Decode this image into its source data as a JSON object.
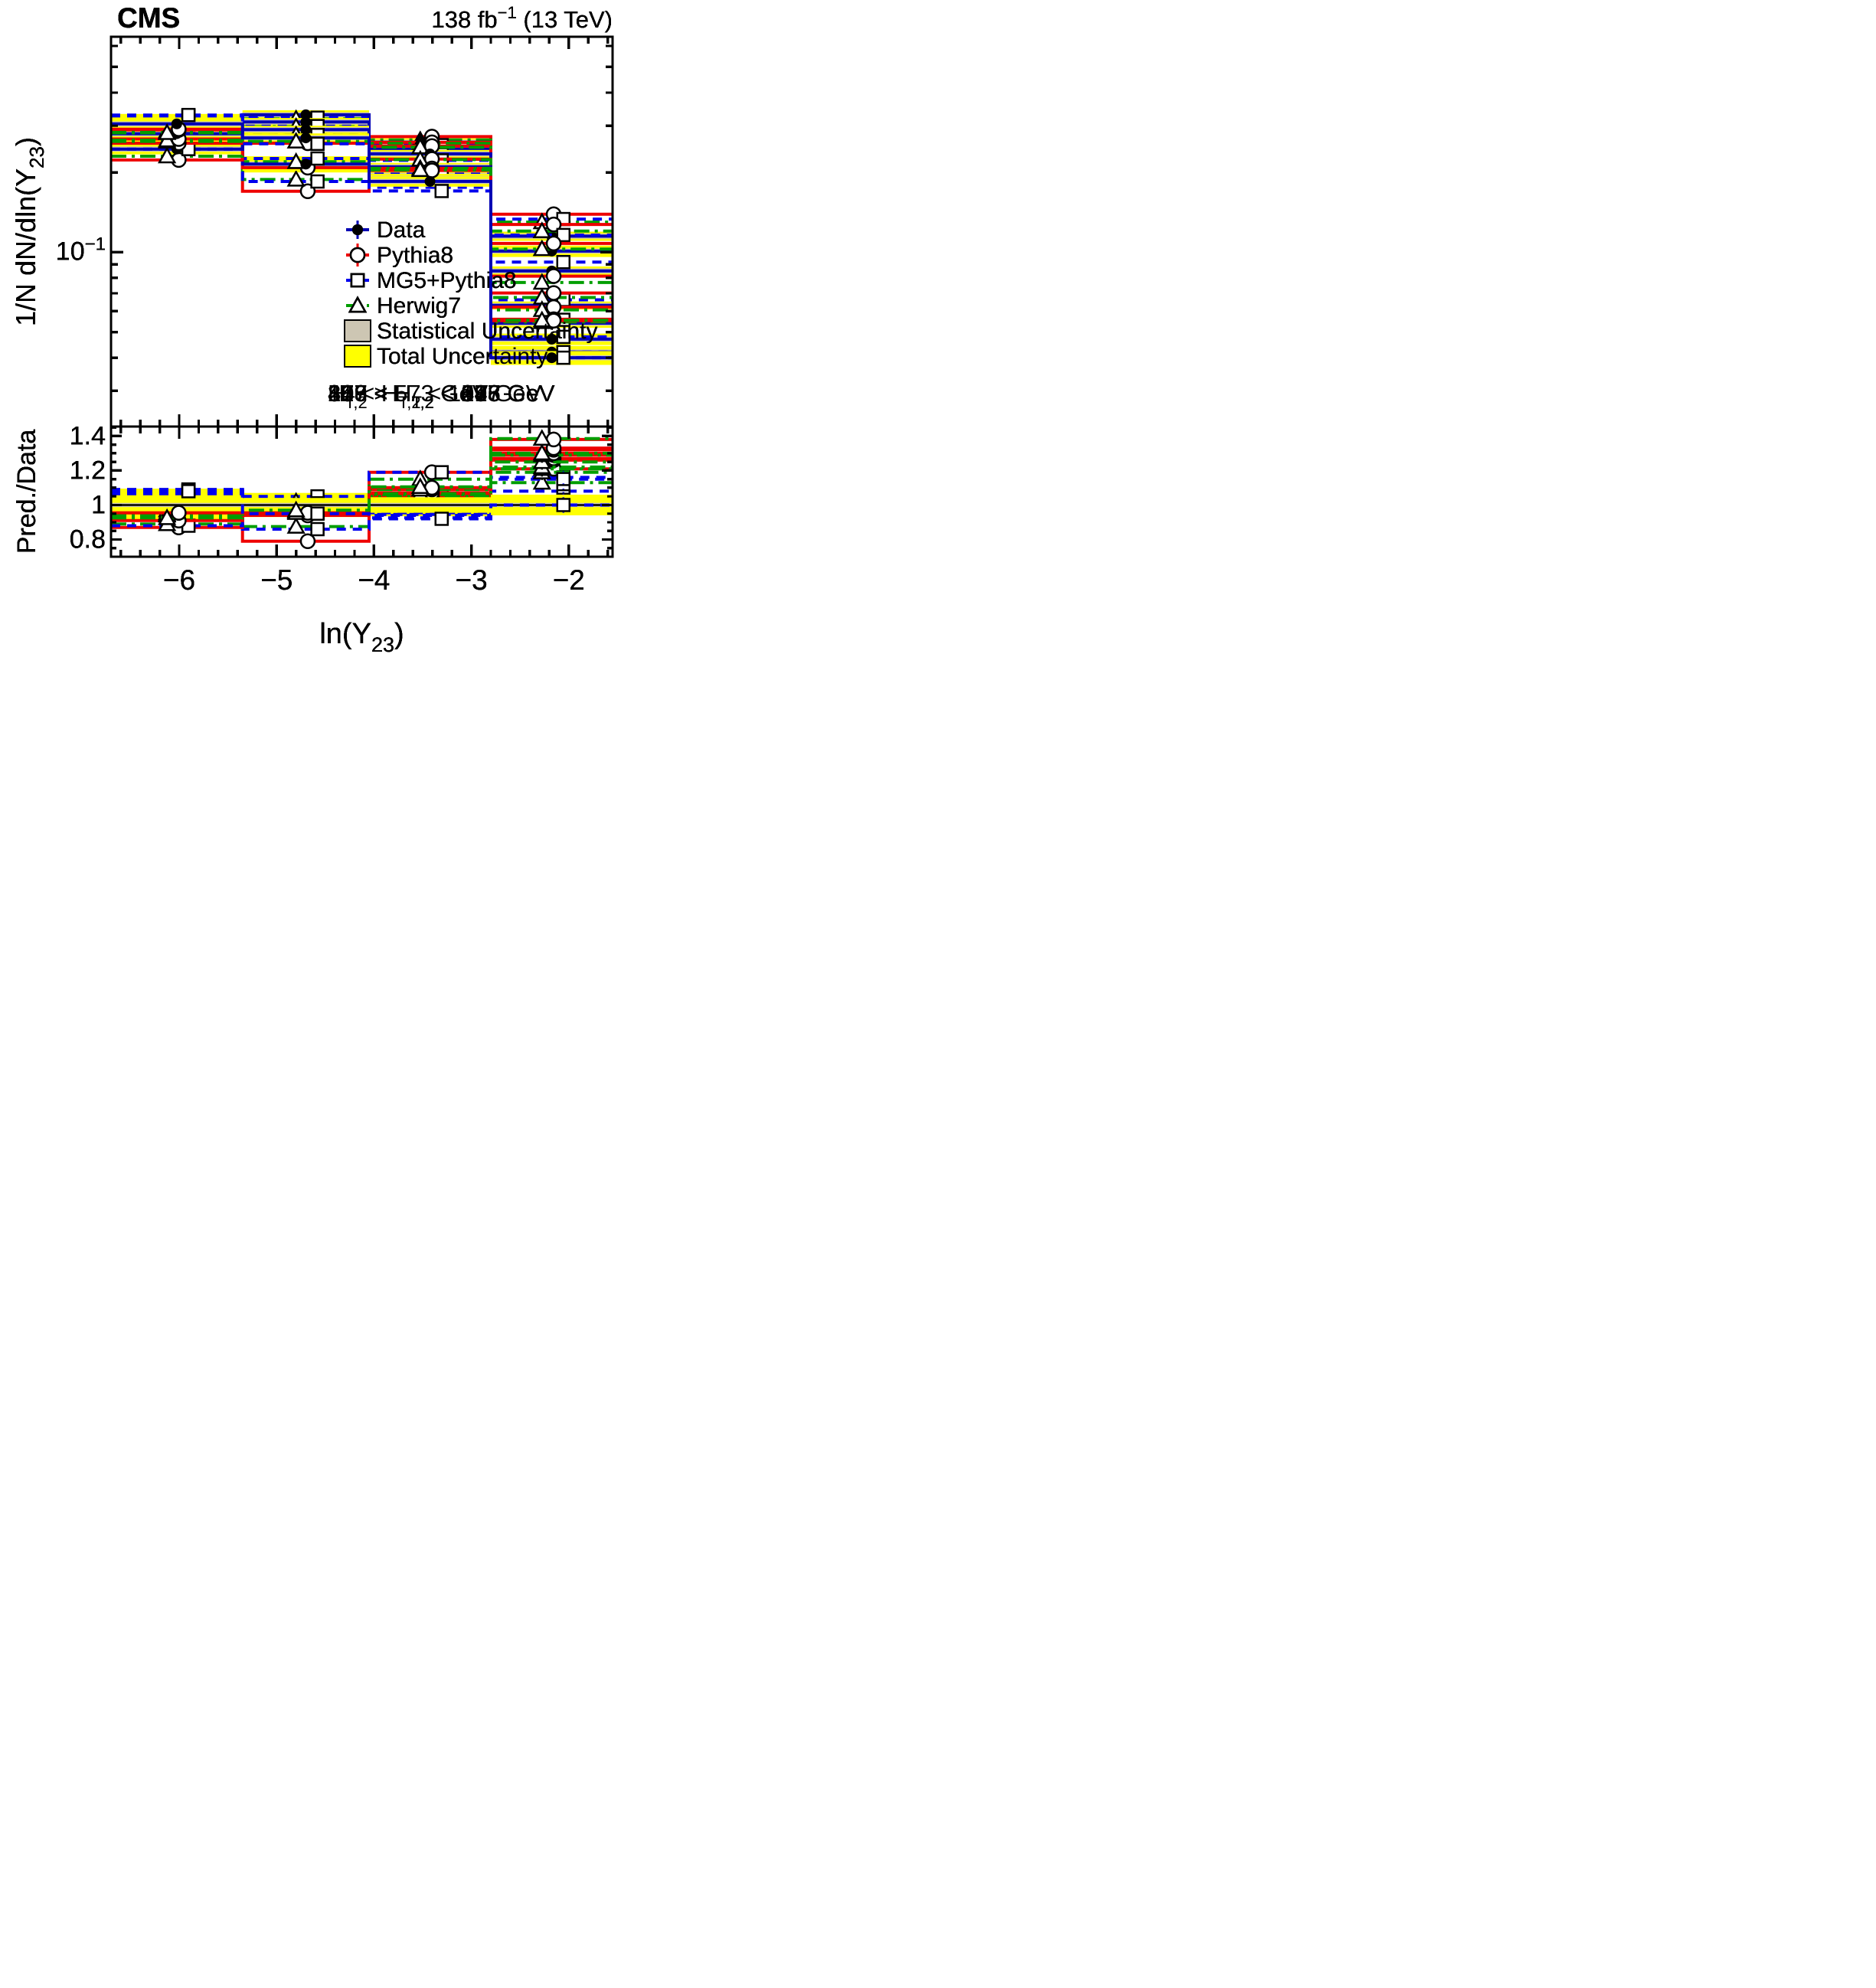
{
  "figure": {
    "experiment_label": "CMS",
    "lumi_parts": [
      {
        "t": "138 fb"
      },
      {
        "t": "−1",
        "sup": true
      },
      {
        "t": " (13 TeV)"
      }
    ]
  },
  "legend": {
    "entries": [
      {
        "key": "data",
        "label": "Data"
      },
      {
        "key": "pythia8",
        "label": "Pythia8"
      },
      {
        "key": "mg5",
        "label": "MG5+Pythia8"
      },
      {
        "key": "herwig7",
        "label": "Herwig7"
      },
      {
        "key": "stat",
        "label": "Statistical Uncertainty"
      },
      {
        "key": "total",
        "label": "Total Uncertainty"
      }
    ]
  },
  "colors": {
    "data_line": "#0000b4",
    "marker": "#000000",
    "pythia8": "#ee0000",
    "mg5": "#0000ee",
    "herwig7": "#009e00",
    "total_unc": "#ffff00",
    "stat_unc": "#cdc6b3",
    "frame": "#000000",
    "text": "#000000"
  },
  "chart_data": {
    "type": "line",
    "subtype": "step-histogram-with-ratio-panel",
    "x_label_parts": [
      {
        "t": "ln(Y"
      },
      {
        "t": "23",
        "sub": true
      },
      {
        "t": ")"
      }
    ],
    "y_label_parts": [
      {
        "t": "1/N dN/dln(Y"
      },
      {
        "t": "23",
        "sub": true
      },
      {
        "t": ")"
      }
    ],
    "ratio_label": "Pred./Data",
    "y_scale": "log",
    "x_range": [
      -6.7,
      -1.55
    ],
    "x_edges": [
      -6.7,
      -5.35,
      -4.05,
      -2.8,
      -1.55
    ],
    "x_major_ticks": [
      -6,
      -5,
      -4,
      -3,
      -2
    ],
    "y_range_main": [
      0.022,
      0.65
    ],
    "y_major_ticks_main": [
      {
        "value": 0.1,
        "parts": [
          {
            "t": "10"
          },
          {
            "t": "−1",
            "sup": true
          }
        ]
      }
    ],
    "y_minor_ticks_main": [
      0.03,
      0.04,
      0.05,
      0.06,
      0.07,
      0.08,
      0.09,
      0.2,
      0.3,
      0.4,
      0.5,
      0.6
    ],
    "y_range_ratio": [
      0.7,
      1.455
    ],
    "ratio_major_ticks": [
      {
        "value": 0.8,
        "label": "0.8"
      },
      {
        "value": 1.0,
        "label": "1"
      },
      {
        "value": 1.2,
        "label": "1.2"
      },
      {
        "value": 1.4,
        "label": "1.4"
      }
    ],
    "stat_unc_rel": 0.012,
    "panels": [
      {
        "ht_label_parts": [
          {
            "t": "83 < H"
          },
          {
            "t": "T,2",
            "sub": true
          },
          {
            "t": " < 109 GeV"
          }
        ],
        "data": [
          0.315,
          0.215,
          0.195,
          0.115
        ],
        "total_unc_rel": [
          0.055,
          0.07,
          0.065,
          0.04
        ],
        "pythia8_ratio": [
          0.97,
          0.79,
          1.19,
          1.21
        ],
        "mg5_ratio": [
          0.95,
          0.86,
          1.19,
          1.16
        ],
        "herwig7_ratio": [
          0.96,
          0.875,
          1.15,
          1.13
        ]
      },
      {
        "ht_label_parts": [
          {
            "t": "109 < H"
          },
          {
            "t": "T,2",
            "sub": true
          },
          {
            "t": " < 176 GeV"
          }
        ],
        "data": [
          0.3,
          0.215,
          0.235,
          0.101
        ],
        "total_unc_rel": [
          0.095,
          0.055,
          0.045,
          0.05
        ],
        "pythia8_ratio": [
          0.87,
          0.97,
          1.1,
          1.26
        ],
        "mg5_ratio": [
          0.88,
          1.05,
          1.05,
          1.15
        ],
        "herwig7_ratio": [
          0.89,
          1.02,
          1.05,
          1.19
        ]
      },
      {
        "ht_label_parts": [
          {
            "t": "176 < H"
          },
          {
            "t": "T,2",
            "sub": true
          },
          {
            "t": " < 247 GeV"
          }
        ],
        "data": [
          0.245,
          0.3,
          0.26,
          0.085
        ],
        "total_unc_rel": [
          0.045,
          0.035,
          0.035,
          0.04
        ],
        "pythia8_ratio": [
          0.91,
          0.985,
          1.05,
          1.27
        ],
        "mg5_ratio": [
          1.0,
          1.01,
          0.975,
          1.08
        ],
        "herwig7_ratio": [
          0.94,
          0.99,
          1.02,
          1.21
        ]
      },
      {
        "ht_label_parts": [
          {
            "t": "247 < H"
          },
          {
            "t": "T,2",
            "sub": true
          },
          {
            "t": " < 318 GeV"
          }
        ],
        "data": [
          0.27,
          0.325,
          0.245,
          0.063
        ],
        "total_unc_rel": [
          0.05,
          0.035,
          0.035,
          0.035
        ],
        "pythia8_ratio": [
          0.955,
          0.945,
          1.06,
          1.29
        ],
        "mg5_ratio": [
          1.065,
          0.975,
          0.955,
          1.05
        ],
        "herwig7_ratio": [
          0.97,
          0.965,
          1.05,
          1.22
        ]
      },
      {
        "ht_label_parts": [
          {
            "t": "318 < H"
          },
          {
            "t": "T,2",
            "sub": true
          },
          {
            "t": " < 387 GeV"
          }
        ],
        "data": [
          0.28,
          0.33,
          0.235,
          0.054
        ],
        "total_unc_rel": [
          0.05,
          0.04,
          0.035,
          0.04
        ],
        "pythia8_ratio": [
          0.955,
          0.945,
          1.07,
          1.3
        ],
        "mg5_ratio": [
          1.08,
          0.975,
          0.945,
          1.03
        ],
        "herwig7_ratio": [
          0.945,
          0.965,
          1.06,
          1.25
        ]
      },
      {
        "ht_label_parts": [
          {
            "t": "387 < H"
          },
          {
            "t": "T,2",
            "sub": true
          },
          {
            "t": " < 477 GeV"
          }
        ],
        "data": [
          0.3,
          0.31,
          0.21,
          0.047
        ],
        "total_unc_rel": [
          0.04,
          0.035,
          0.035,
          0.05
        ],
        "pythia8_ratio": [
          0.97,
          0.945,
          1.07,
          1.32
        ],
        "mg5_ratio": [
          1.09,
          0.965,
          0.94,
          1.02
        ],
        "herwig7_ratio": [
          0.955,
          0.96,
          1.065,
          1.29
        ]
      },
      {
        "ht_label_parts": [
          {
            "t": "477 < H"
          },
          {
            "t": "T,2",
            "sub": true
          },
          {
            "t": " < 573 GeV"
          }
        ],
        "data": [
          0.3,
          0.29,
          0.19,
          0.042
        ],
        "total_unc_rel": [
          0.05,
          0.035,
          0.04,
          0.055
        ],
        "pythia8_ratio": [
          0.965,
          0.94,
          1.09,
          1.33
        ],
        "mg5_ratio": [
          1.09,
          0.955,
          0.925,
          1.0
        ],
        "herwig7_ratio": [
          0.945,
          0.955,
          1.09,
          1.3
        ]
      },
      {
        "ht_label_parts": [
          {
            "t": "H"
          },
          {
            "t": "T,2",
            "sub": true
          },
          {
            "t": " > 573 GeV"
          }
        ],
        "data": [
          0.305,
          0.27,
          0.185,
          0.04
        ],
        "total_unc_rel": [
          0.045,
          0.04,
          0.045,
          0.06
        ],
        "pythia8_ratio": [
          0.955,
          0.955,
          1.1,
          1.38
        ],
        "mg5_ratio": [
          1.08,
          0.95,
          0.92,
          1.0
        ],
        "herwig7_ratio": [
          0.925,
          0.97,
          1.105,
          1.385
        ]
      }
    ]
  }
}
